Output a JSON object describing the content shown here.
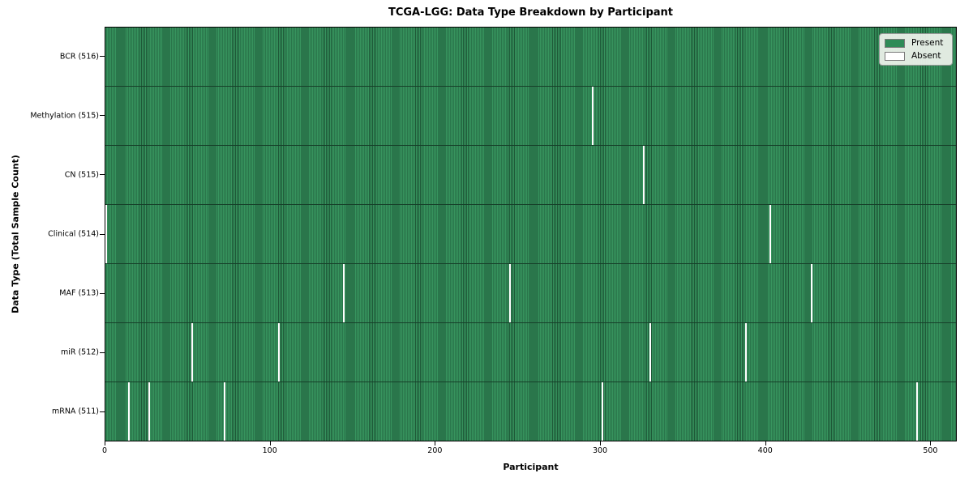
{
  "chart_data": {
    "type": "heatmap",
    "title": "TCGA-LGG: Data Type Breakdown by Participant",
    "xlabel": "Participant",
    "ylabel": "Data Type (Total Sample Count)",
    "x_ticks": [
      0,
      100,
      200,
      300,
      400,
      500
    ],
    "x_range": [
      0,
      516
    ],
    "n_participants": 516,
    "grid": false,
    "legend": {
      "position": "upper-right",
      "entries": [
        {
          "label": "Present",
          "color": "#2e8b57"
        },
        {
          "label": "Absent",
          "color": "#ffffff"
        }
      ]
    },
    "rows": [
      {
        "data_type": "BCR",
        "label": "BCR (516)",
        "count": 516,
        "absent_participants": []
      },
      {
        "data_type": "Methylation",
        "label": "Methylation (515)",
        "count": 515,
        "absent_participants": [
          295
        ]
      },
      {
        "data_type": "CN",
        "label": "CN (515)",
        "count": 515,
        "absent_participants": [
          326
        ]
      },
      {
        "data_type": "Clinical",
        "label": "Clinical (514)",
        "count": 514,
        "absent_participants": [
          0,
          403
        ]
      },
      {
        "data_type": "MAF",
        "label": "MAF (513)",
        "count": 513,
        "absent_participants": [
          144,
          245,
          428
        ]
      },
      {
        "data_type": "miR",
        "label": "miR (512)",
        "count": 512,
        "absent_participants": [
          52,
          105,
          330,
          388
        ]
      },
      {
        "data_type": "mRNA",
        "label": "mRNA (511)",
        "count": 511,
        "absent_participants": [
          14,
          26,
          72,
          301,
          492
        ]
      }
    ],
    "colors": {
      "present": "#2e8b57",
      "absent": "#ffffff",
      "stripe_light": "#37945e",
      "stripe_dark": "#1e5938",
      "row_separator": "#163f29",
      "axis": "#000000",
      "legend_background": "#f0f3ee",
      "legend_border": "#9a9a9a"
    }
  }
}
